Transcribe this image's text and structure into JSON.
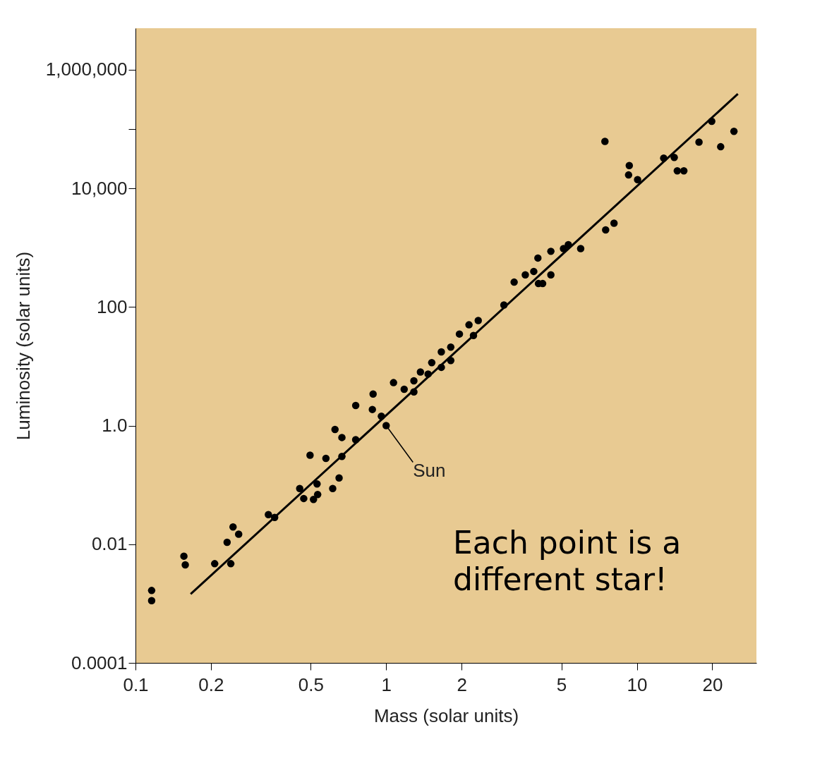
{
  "chart_data": {
    "type": "scatter",
    "xlabel": "Mass (solar units)",
    "ylabel": "Luminosity (solar units)",
    "log": "xy",
    "grid": false,
    "xlim": [
      0.1,
      30
    ],
    "xticks": [
      0.1,
      0.2,
      0.5,
      1,
      2,
      5,
      10,
      20
    ],
    "ylim": [
      0.0001,
      5000000
    ],
    "yticks": [
      0.0001,
      0.01,
      {
        "value": 1,
        "label": "1.0"
      },
      100,
      {
        "value": 10000,
        "label": "10,000"
      },
      {
        "value": 100000,
        "label": null
      },
      {
        "value": 1000000,
        "label": "1,000,000"
      }
    ],
    "series": [
      {
        "type": "scatter",
        "color": "#000000",
        "marker": "circle",
        "x": [
          0.116,
          0.116,
          0.156,
          0.158,
          0.207,
          0.24,
          0.232,
          0.245,
          0.258,
          0.339,
          0.359,
          0.452,
          0.469,
          0.513,
          0.533,
          0.53,
          0.612,
          0.649,
          0.497,
          0.575,
          0.666,
          0.625,
          0.666,
          0.756,
          0.756,
          0.887,
          0.881,
          0.957,
          1.07,
          1.18,
          1.29,
          1.37,
          1.52,
          1.66,
          1.81,
          1.96,
          2.14,
          2.33,
          2.23,
          1.66,
          1.47,
          1.29,
          1.81,
          1,
          2.95,
          3.24,
          3.59,
          3.88,
          4.03,
          4.54,
          4.54,
          4.05,
          4.21,
          5.1,
          5.33,
          5.97,
          7.51,
          8.11,
          7.46,
          9.33,
          9.27,
          10.07,
          12.8,
          14.1,
          14.5,
          15.4,
          17.7,
          19.9,
          21.6,
          24.4
        ],
        "values": [
          0.00166,
          0.00112,
          0.0063,
          0.0045,
          0.0047,
          0.0047,
          0.0108,
          0.0196,
          0.0148,
          0.0316,
          0.0283,
          0.087,
          0.059,
          0.057,
          0.069,
          0.104,
          0.087,
          0.131,
          0.317,
          0.28,
          0.302,
          0.86,
          0.63,
          0.58,
          2.18,
          3.4,
          1.87,
          1.44,
          5.3,
          4.1,
          5.7,
          8.0,
          11.5,
          17.5,
          21,
          35,
          50,
          59,
          33,
          9.6,
          7.4,
          3.7,
          12.5,
          1,
          108,
          262,
          348,
          397,
          668,
          867,
          348,
          248,
          248,
          962,
          1120,
          962,
          1990,
          2580,
          61800,
          24200,
          16800,
          14000,
          32200,
          33100,
          19700,
          19700,
          60200,
          135000,
          50200,
          91200
        ]
      },
      {
        "type": "line",
        "color": "#000000",
        "x": [
          0.166,
          25.3
        ],
        "values": [
          0.00145,
          390000
        ]
      }
    ],
    "annotations": [
      {
        "text": "Sun",
        "x": 1,
        "y": 1
      },
      "Each point is a different star!"
    ]
  }
}
